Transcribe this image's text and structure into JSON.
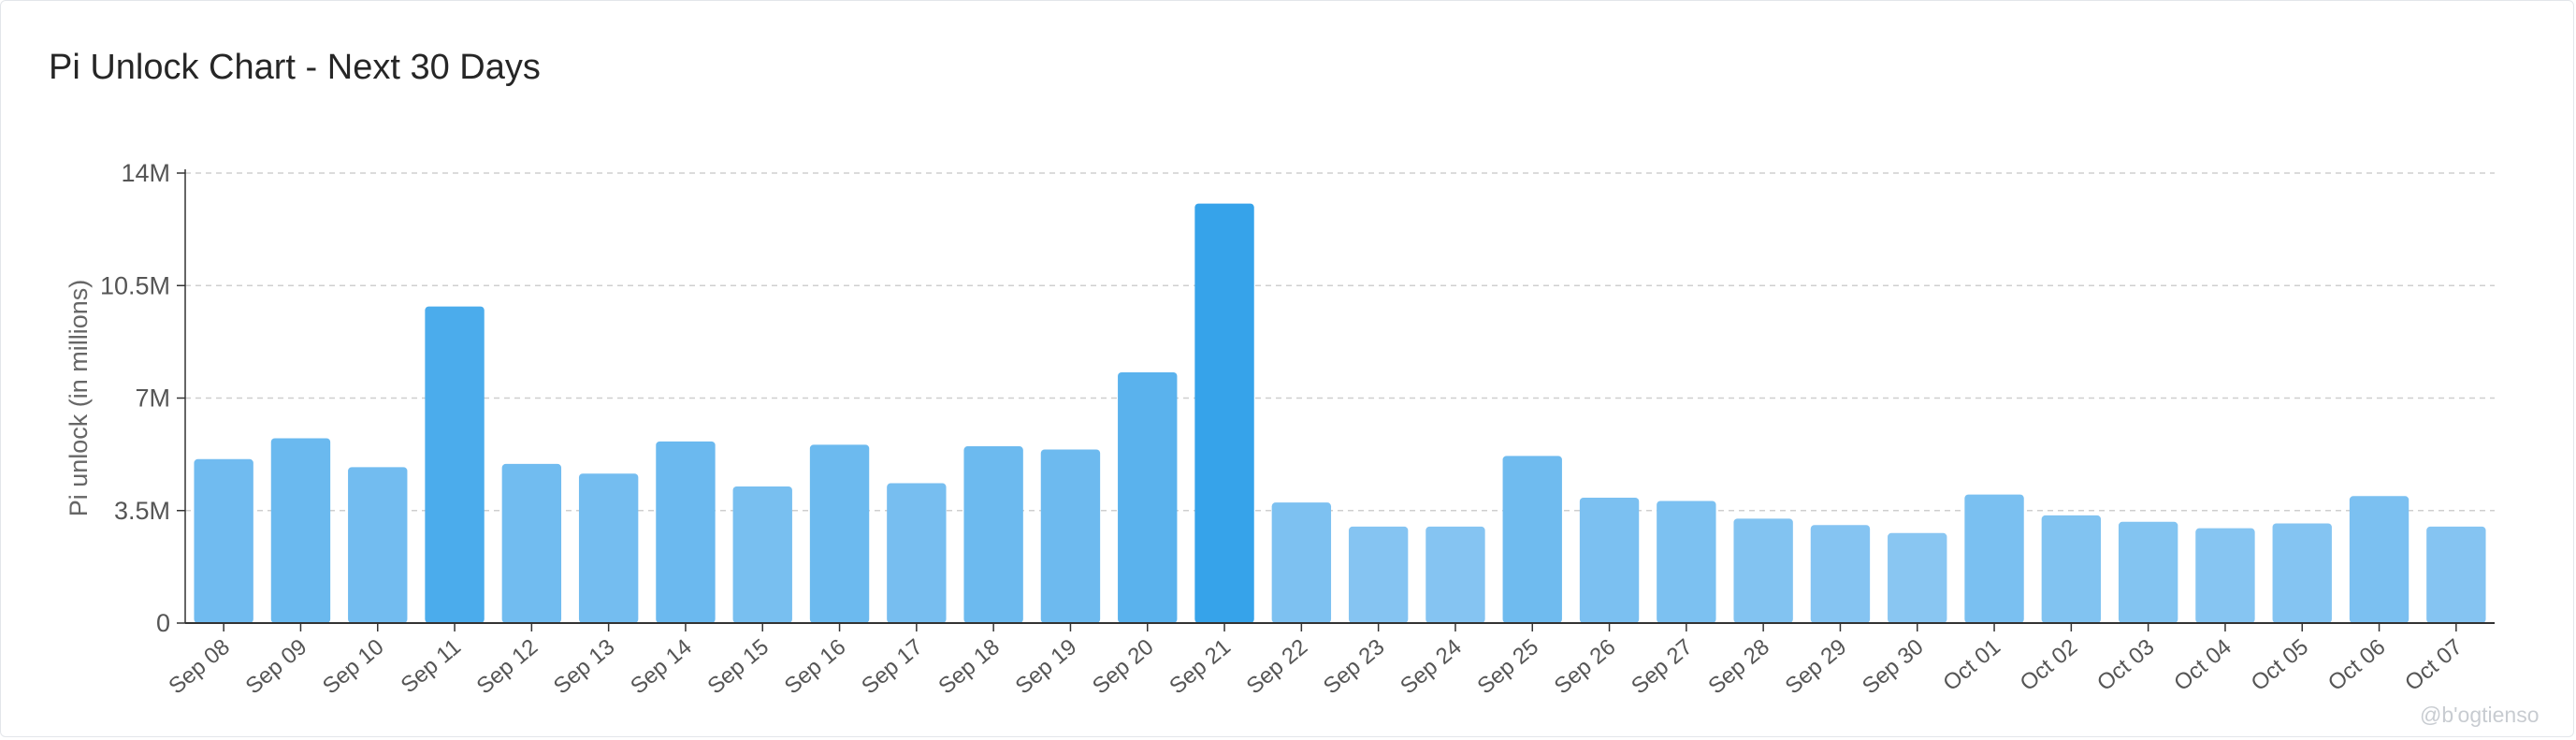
{
  "title": "Pi Unlock Chart - Next 30 Days",
  "watermark": "@b'ogtienso",
  "colors": {
    "bar_light": "#89c6f2",
    "bar_dark": "#36a3ea",
    "grid": "#cfcfcf",
    "axis": "#333333",
    "tick_text": "#555555"
  },
  "chart_data": {
    "type": "bar",
    "title": "Pi Unlock Chart - Next 30 Days",
    "xlabel": "",
    "ylabel": "Pi unlock (in millions)",
    "ylim": [
      0,
      14000000
    ],
    "y_ticks": [
      {
        "value": 0,
        "label": "0"
      },
      {
        "value": 3500000,
        "label": "3.5M"
      },
      {
        "value": 7000000,
        "label": "7M"
      },
      {
        "value": 10500000,
        "label": "10.5M"
      },
      {
        "value": 14000000,
        "label": "14M"
      }
    ],
    "grid": true,
    "legend": "none",
    "categories": [
      "Sep 08",
      "Sep 09",
      "Sep 10",
      "Sep 11",
      "Sep 12",
      "Sep 13",
      "Sep 14",
      "Sep 15",
      "Sep 16",
      "Sep 17",
      "Sep 18",
      "Sep 19",
      "Sep 20",
      "Sep 21",
      "Sep 22",
      "Sep 23",
      "Sep 24",
      "Sep 25",
      "Sep 26",
      "Sep 27",
      "Sep 28",
      "Sep 29",
      "Sep 30",
      "Oct 01",
      "Oct 02",
      "Oct 03",
      "Oct 04",
      "Oct 05",
      "Oct 06",
      "Oct 07"
    ],
    "values": [
      5100000,
      5750000,
      4850000,
      9850000,
      4950000,
      4650000,
      5650000,
      4250000,
      5550000,
      4350000,
      5500000,
      5400000,
      7800000,
      13050000,
      3750000,
      3000000,
      3000000,
      5200000,
      3900000,
      3800000,
      3250000,
      3050000,
      2800000,
      4000000,
      3350000,
      3150000,
      2950000,
      3100000,
      3950000,
      3000000
    ]
  }
}
